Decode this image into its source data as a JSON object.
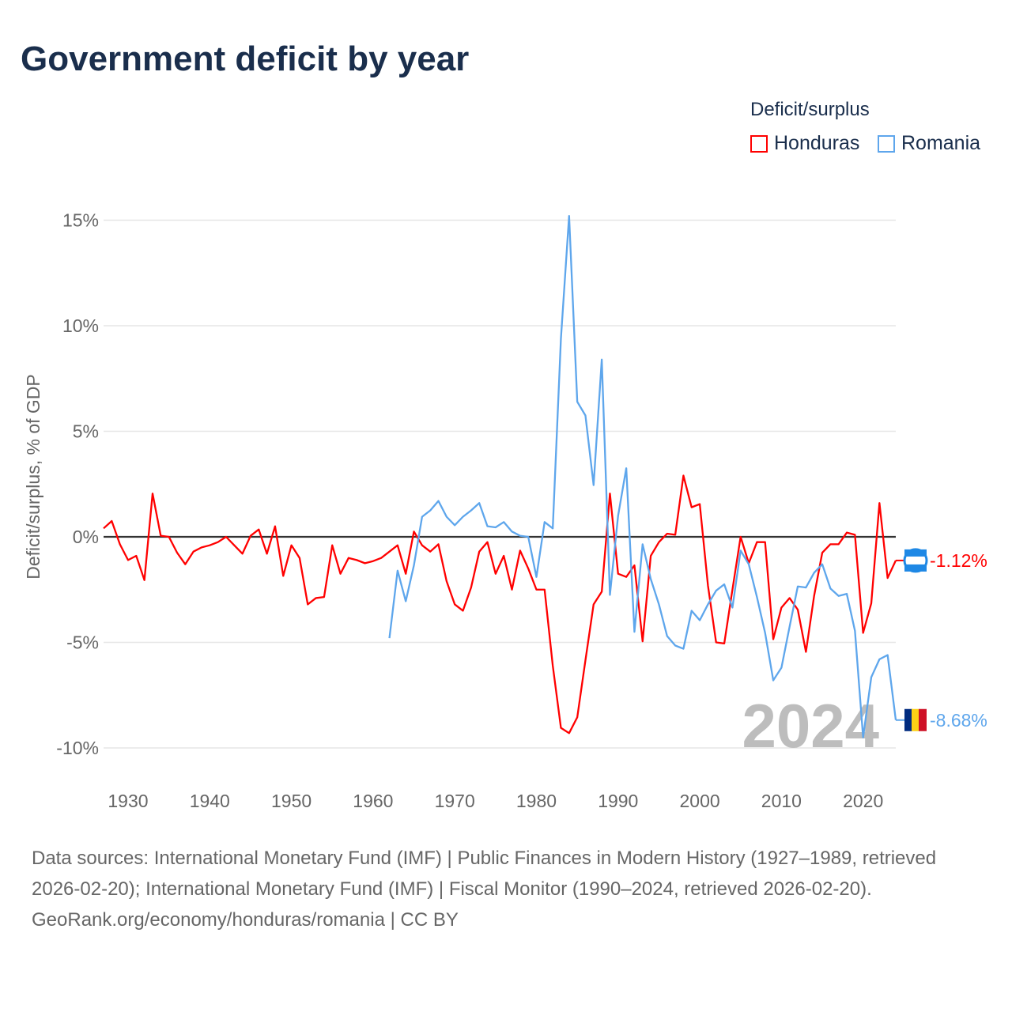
{
  "title": "Government deficit by year",
  "legend": {
    "title": "Deficit/surplus",
    "items": [
      {
        "name": "Honduras",
        "color": "#ff0000"
      },
      {
        "name": "Romania",
        "color": "#5ea6ec"
      }
    ]
  },
  "footer": {
    "sources": "Data sources: International Monetary Fund (IMF) | Public Finances in Modern History (1927–1989, retrieved 2026-02-20); International Monetary Fund (IMF) | Fiscal Monitor (1990–2024, retrieved 2026-02-20).",
    "credit": "GeoRank.org/economy/honduras/romania | CC BY"
  },
  "chart_data": {
    "type": "line",
    "title": "Government deficit by year",
    "xlabel": "",
    "ylabel": "Deficit/surplus, % of GDP",
    "xlim": [
      1927,
      2024
    ],
    "ylim": [
      -12,
      16
    ],
    "grid": true,
    "legend_position": "top-right",
    "current_year_label": "2024",
    "x_ticks": [
      1930,
      1940,
      1950,
      1960,
      1970,
      1980,
      1990,
      2000,
      2010,
      2020
    ],
    "y_ticks": [
      15,
      10,
      5,
      0,
      -5,
      -10
    ],
    "y_tick_labels": [
      "15%",
      "10%",
      "5%",
      "0%",
      "-5%",
      "-10%"
    ],
    "series": [
      {
        "name": "Honduras",
        "color": "#ff0000",
        "start_year": 1927,
        "end_label": "-1.12%",
        "values": [
          0.4,
          0.75,
          -0.35,
          -1.1,
          -0.9,
          -2.05,
          2.05,
          0.05,
          0,
          -0.75,
          -1.3,
          -0.7,
          -0.5,
          -0.4,
          -0.25,
          0,
          -0.4,
          -0.8,
          0.05,
          0.35,
          -0.8,
          0.5,
          -1.85,
          -0.4,
          -1,
          -3.2,
          -2.9,
          -2.85,
          -0.4,
          -1.75,
          -1,
          -1.1,
          -1.25,
          -1.15,
          -1,
          -0.7,
          -0.4,
          -1.75,
          0.25,
          -0.4,
          -0.7,
          -0.35,
          -2.1,
          -3.2,
          -3.5,
          -2.4,
          -0.7,
          -0.25,
          -1.75,
          -0.9,
          -2.5,
          -0.65,
          -1.5,
          -2.5,
          -2.5,
          -6.1,
          -9.05,
          -9.3,
          -8.55,
          -5.85,
          -3.2,
          -2.6,
          2.05,
          -1.75,
          -1.9,
          -1.35,
          -4.95,
          -0.9,
          -0.25,
          0.15,
          0.1,
          2.9,
          1.4,
          1.55,
          -2.3,
          -5,
          -5.05,
          -2.5,
          0,
          -1.25,
          -0.25,
          -0.25,
          -4.85,
          -3.35,
          -2.9,
          -3.45,
          -5.45,
          -2.8,
          -0.75,
          -0.35,
          -0.35,
          0.2,
          0.1,
          -4.55,
          -3.15,
          1.6,
          -1.95,
          -1.12
        ]
      },
      {
        "name": "Romania",
        "color": "#5ea6ec",
        "start_year": 1962,
        "end_label": "-8.68%",
        "values": [
          -4.8,
          -1.6,
          -3.05,
          -1.35,
          0.95,
          1.25,
          1.7,
          0.95,
          0.55,
          0.95,
          1.25,
          1.6,
          0.5,
          0.45,
          0.7,
          0.25,
          0.05,
          0,
          -1.9,
          0.7,
          0.4,
          9.4,
          15.2,
          6.4,
          5.75,
          2.45,
          8.4,
          -2.75,
          1.0,
          3.25,
          -4.5,
          -0.35,
          -2,
          -3.2,
          -4.7,
          -5.15,
          -5.3,
          -3.5,
          -3.95,
          -3.2,
          -2.55,
          -2.25,
          -3.35,
          -0.65,
          -1.3,
          -2.85,
          -4.55,
          -6.8,
          -6.2,
          -4.25,
          -2.35,
          -2.4,
          -1.7,
          -1.3,
          -2.45,
          -2.8,
          -2.7,
          -4.45,
          -9.5,
          -6.65,
          -5.8,
          -5.6,
          -8.68
        ]
      }
    ]
  }
}
